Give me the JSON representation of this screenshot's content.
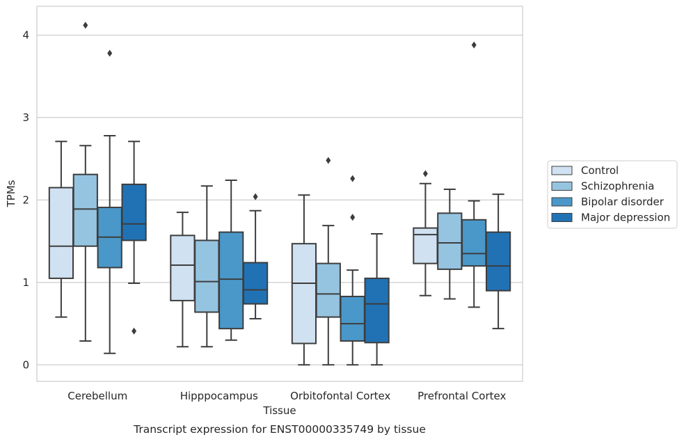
{
  "chart_data": {
    "type": "box",
    "title": "",
    "caption": "Transcript expression for ENST00000335749 by tissue",
    "xlabel": "Tissue",
    "ylabel": "TPMs",
    "ylim": [
      -0.2,
      4.35
    ],
    "yticks": [
      0,
      1,
      2,
      3,
      4
    ],
    "grid": true,
    "legend_position": "right",
    "categories": [
      "Cerebellum",
      "Hipppocampus",
      "Orbitofontal Cortex",
      "Prefrontal Cortex"
    ],
    "series": [
      {
        "name": "Control",
        "color": "#d0e1f2",
        "boxes": [
          {
            "whisker_low": 0.58,
            "q1": 1.05,
            "median": 1.44,
            "q3": 2.15,
            "whisker_high": 2.71,
            "outliers": []
          },
          {
            "whisker_low": 0.22,
            "q1": 0.78,
            "median": 1.21,
            "q3": 1.57,
            "whisker_high": 1.85,
            "outliers": []
          },
          {
            "whisker_low": 0.0,
            "q1": 0.26,
            "median": 0.99,
            "q3": 1.47,
            "whisker_high": 2.06,
            "outliers": []
          },
          {
            "whisker_low": 0.84,
            "q1": 1.23,
            "median": 1.58,
            "q3": 1.66,
            "whisker_high": 2.2,
            "outliers": [
              2.32
            ]
          }
        ]
      },
      {
        "name": "Schizophrenia",
        "color": "#94c4df",
        "boxes": [
          {
            "whisker_low": 0.29,
            "q1": 1.44,
            "median": 1.89,
            "q3": 2.31,
            "whisker_high": 2.66,
            "outliers": [
              4.12
            ]
          },
          {
            "whisker_low": 0.22,
            "q1": 0.64,
            "median": 1.01,
            "q3": 1.51,
            "whisker_high": 2.17,
            "outliers": []
          },
          {
            "whisker_low": 0.0,
            "q1": 0.58,
            "median": 0.86,
            "q3": 1.23,
            "whisker_high": 1.69,
            "outliers": [
              2.48
            ]
          },
          {
            "whisker_low": 0.8,
            "q1": 1.16,
            "median": 1.48,
            "q3": 1.84,
            "whisker_high": 2.13,
            "outliers": []
          }
        ]
      },
      {
        "name": "Bipolar disorder",
        "color": "#4a98c9",
        "boxes": [
          {
            "whisker_low": 0.14,
            "q1": 1.18,
            "median": 1.55,
            "q3": 1.91,
            "whisker_high": 2.78,
            "outliers": [
              3.78
            ]
          },
          {
            "whisker_low": 0.3,
            "q1": 0.44,
            "median": 1.04,
            "q3": 1.61,
            "whisker_high": 2.24,
            "outliers": []
          },
          {
            "whisker_low": 0.0,
            "q1": 0.29,
            "median": 0.5,
            "q3": 0.83,
            "whisker_high": 1.15,
            "outliers": [
              1.79,
              2.26
            ]
          },
          {
            "whisker_low": 0.7,
            "q1": 1.2,
            "median": 1.35,
            "q3": 1.76,
            "whisker_high": 1.99,
            "outliers": [
              3.88
            ]
          }
        ]
      },
      {
        "name": "Major depression",
        "color": "#2171b5",
        "boxes": [
          {
            "whisker_low": 0.99,
            "q1": 1.51,
            "median": 1.71,
            "q3": 2.19,
            "whisker_high": 2.71,
            "outliers": [
              0.41
            ]
          },
          {
            "whisker_low": 0.56,
            "q1": 0.74,
            "median": 0.91,
            "q3": 1.24,
            "whisker_high": 1.87,
            "outliers": [
              2.04
            ]
          },
          {
            "whisker_low": 0.0,
            "q1": 0.27,
            "median": 0.74,
            "q3": 1.05,
            "whisker_high": 1.59,
            "outliers": []
          },
          {
            "whisker_low": 0.44,
            "q1": 0.9,
            "median": 1.2,
            "q3": 1.61,
            "whisker_high": 2.07,
            "outliers": []
          }
        ]
      }
    ]
  }
}
